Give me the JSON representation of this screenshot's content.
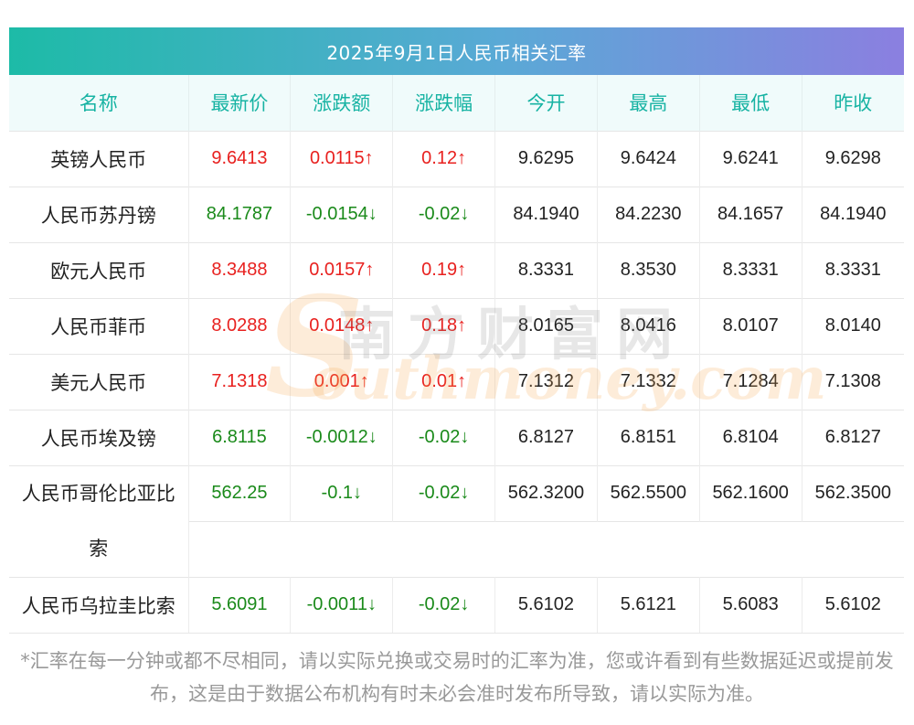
{
  "title": "2025年9月1日人民币相关汇率",
  "headers": [
    "名称",
    "最新价",
    "涨跌额",
    "涨跌幅",
    "今开",
    "最高",
    "最低",
    "昨收"
  ],
  "rows": [
    {
      "name": "英镑人民币",
      "latest": "9.6413",
      "change": "0.0115↑",
      "pct": "0.12↑",
      "open": "9.6295",
      "high": "9.6424",
      "low": "9.6241",
      "prev": "9.6298",
      "dir": "up"
    },
    {
      "name": "人民币苏丹镑",
      "latest": "84.1787",
      "change": "-0.0154↓",
      "pct": "-0.02↓",
      "open": "84.1940",
      "high": "84.2230",
      "low": "84.1657",
      "prev": "84.1940",
      "dir": "down"
    },
    {
      "name": "欧元人民币",
      "latest": "8.3488",
      "change": "0.0157↑",
      "pct": "0.19↑",
      "open": "8.3331",
      "high": "8.3530",
      "low": "8.3331",
      "prev": "8.3331",
      "dir": "up"
    },
    {
      "name": "人民币菲币",
      "latest": "8.0288",
      "change": "0.0148↑",
      "pct": "0.18↑",
      "open": "8.0165",
      "high": "8.0416",
      "low": "8.0107",
      "prev": "8.0140",
      "dir": "up"
    },
    {
      "name": "美元人民币",
      "latest": "7.1318",
      "change": "0.001↑",
      "pct": "0.01↑",
      "open": "7.1312",
      "high": "7.1332",
      "low": "7.1284",
      "prev": "7.1308",
      "dir": "up"
    },
    {
      "name": "人民币埃及镑",
      "latest": "6.8115",
      "change": "-0.0012↓",
      "pct": "-0.02↓",
      "open": "6.8127",
      "high": "6.8151",
      "low": "6.8104",
      "prev": "6.8127",
      "dir": "down"
    },
    {
      "name_line1": "人民币哥伦比亚比",
      "name_line2": "索",
      "latest": "562.25",
      "change": "-0.1↓",
      "pct": "-0.02↓",
      "open": "562.3200",
      "high": "562.5500",
      "low": "562.1600",
      "prev": "562.3500",
      "dir": "down"
    },
    {
      "name": "人民币乌拉圭比索",
      "latest": "5.6091",
      "change": "-0.0011↓",
      "pct": "-0.02↓",
      "open": "5.6102",
      "high": "5.6121",
      "low": "5.6083",
      "prev": "5.6102",
      "dir": "down"
    }
  ],
  "watermark": {
    "cn": "南方财富网",
    "en": "outhmoney.com",
    "s": "S"
  },
  "note": "*汇率在每一分钟或都不尽相同，请以实际兑换或交易时的汇率为准，您或许看到有些数据延迟或提前发布，这是由于数据公布机构有时未必会准时发布所导致，请以实际为准。",
  "colors": {
    "up": "#e8211f",
    "down": "#1a8a1a",
    "header_text": "#17b3a3"
  }
}
